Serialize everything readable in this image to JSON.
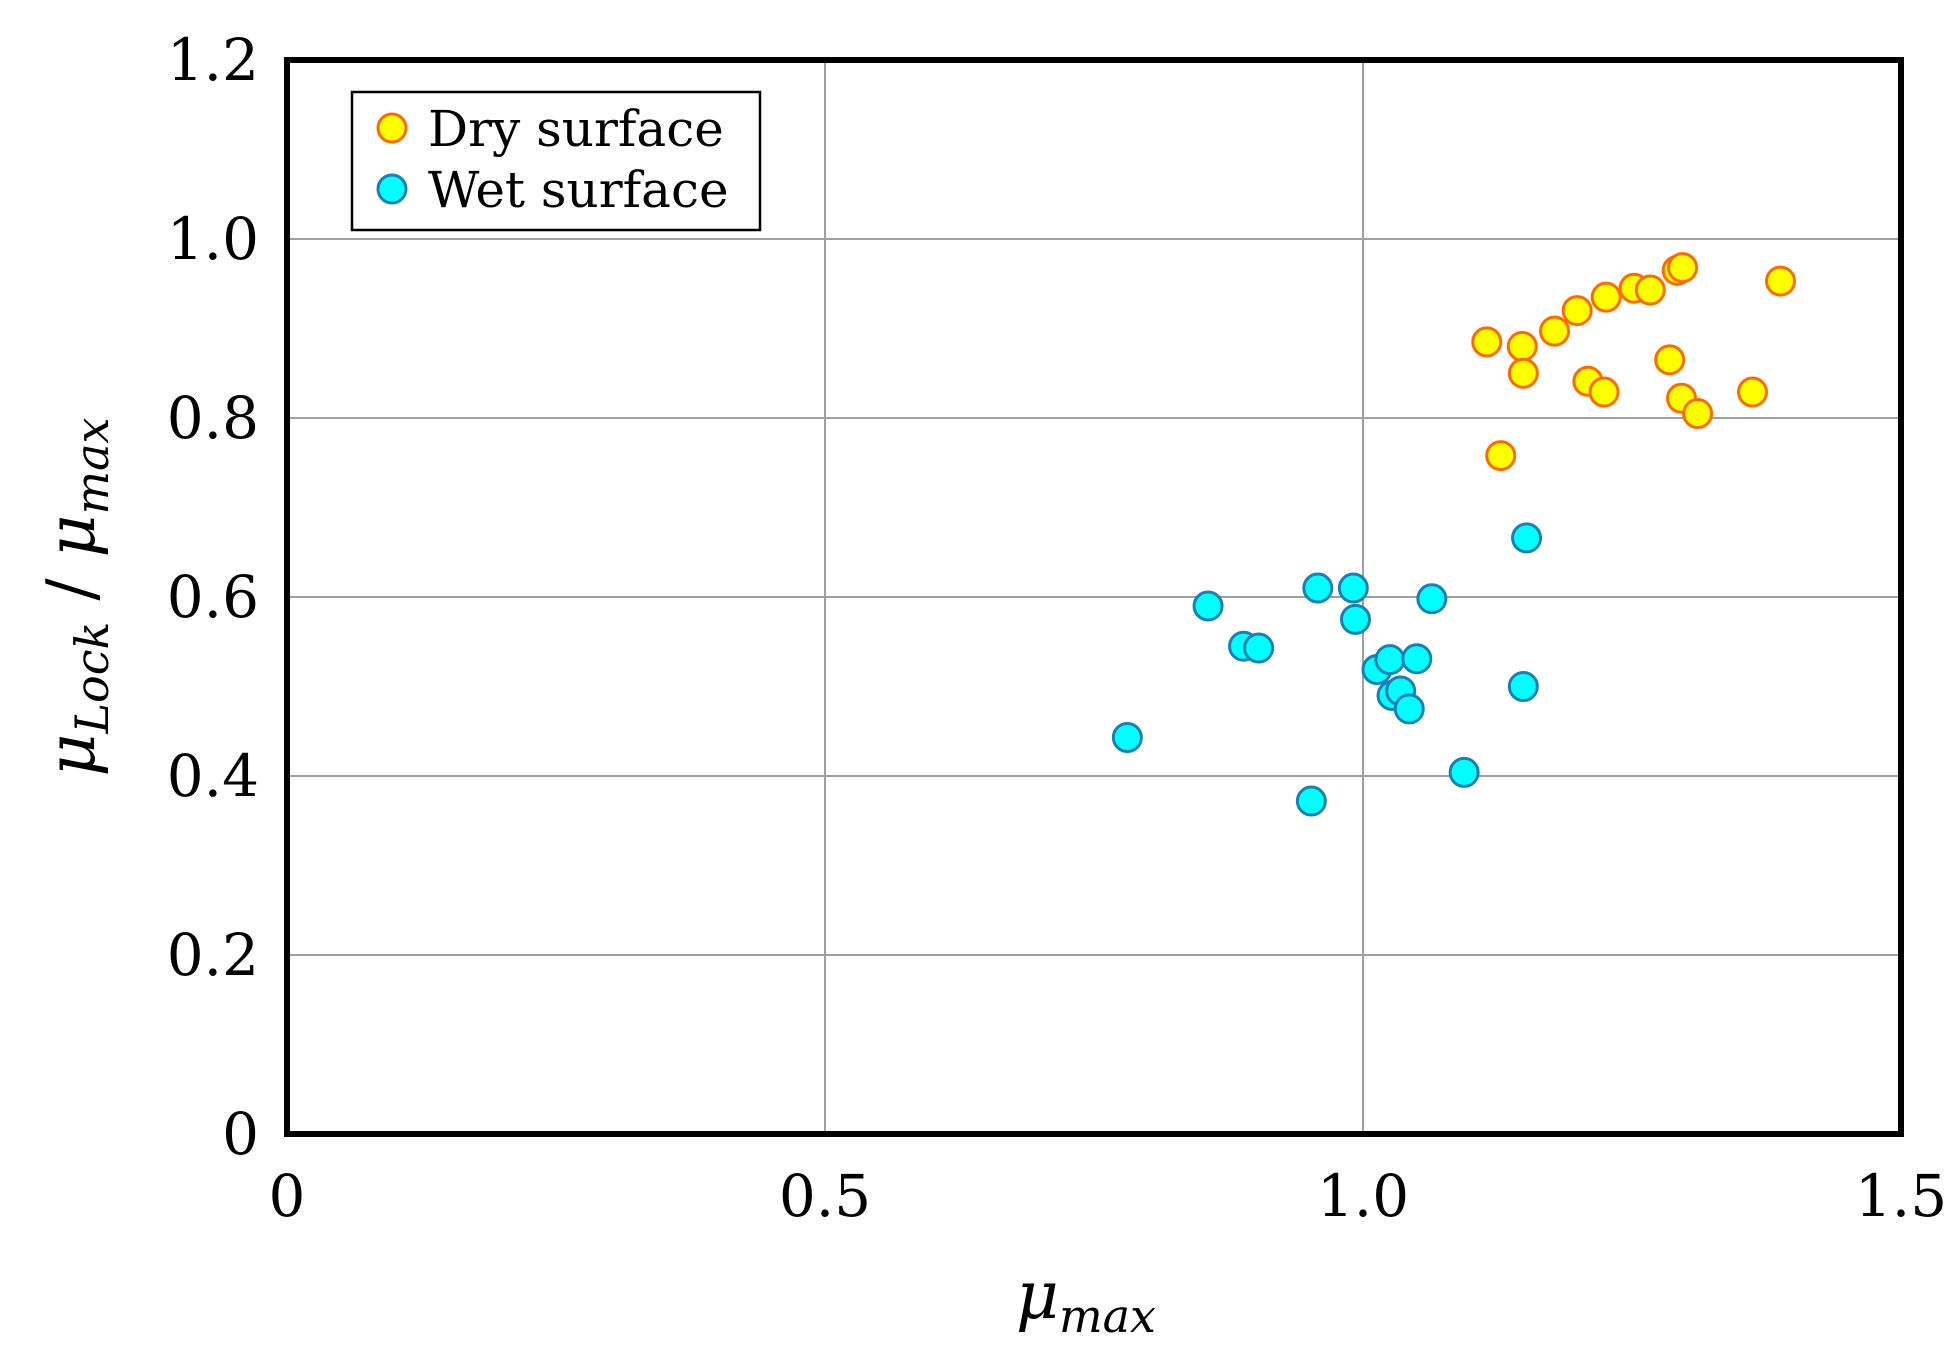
{
  "chart_data": {
    "type": "scatter",
    "title": "",
    "xlabel": {
      "symbol": "μ",
      "subscript": "max"
    },
    "ylabel": {
      "parts": [
        {
          "symbol": "μ",
          "subscript": "Lock"
        },
        {
          "text": " / "
        },
        {
          "symbol": "μ",
          "subscript": "max"
        }
      ]
    },
    "xlim": [
      0,
      1.5
    ],
    "ylim": [
      0,
      1.2
    ],
    "x_ticks": [
      0,
      0.5,
      1.0,
      1.5
    ],
    "x_tick_labels": [
      "0",
      "0.5",
      "1.0",
      "1.5"
    ],
    "y_ticks": [
      0,
      0.2,
      0.4,
      0.6,
      0.8,
      1.0,
      1.2
    ],
    "y_tick_labels": [
      "0",
      "0.2",
      "0.4",
      "0.6",
      "0.8",
      "1.0",
      "1.2"
    ],
    "grid": true,
    "legend_position": "top-left",
    "series": [
      {
        "name": "Dry surface",
        "fill": "#FFFF00",
        "stroke": "#FF6A00",
        "points": [
          [
            1.115,
            0.885
          ],
          [
            1.148,
            0.88
          ],
          [
            1.149,
            0.85
          ],
          [
            1.128,
            0.758
          ],
          [
            1.178,
            0.897
          ],
          [
            1.199,
            0.92
          ],
          [
            1.209,
            0.841
          ],
          [
            1.224,
            0.829
          ],
          [
            1.226,
            0.935
          ],
          [
            1.252,
            0.945
          ],
          [
            1.267,
            0.943
          ],
          [
            1.292,
            0.965
          ],
          [
            1.297,
            0.968
          ],
          [
            1.285,
            0.865
          ],
          [
            1.296,
            0.822
          ],
          [
            1.311,
            0.805
          ],
          [
            1.362,
            0.829
          ],
          [
            1.388,
            0.953
          ]
        ]
      },
      {
        "name": "Wet surface",
        "fill": "#00FFFF",
        "stroke": "#1A7FB5",
        "points": [
          [
            0.781,
            0.443
          ],
          [
            0.856,
            0.59
          ],
          [
            0.889,
            0.545
          ],
          [
            0.903,
            0.543
          ],
          [
            0.952,
            0.372
          ],
          [
            0.958,
            0.61
          ],
          [
            0.991,
            0.61
          ],
          [
            0.993,
            0.575
          ],
          [
            1.013,
            0.519
          ],
          [
            1.025,
            0.53
          ],
          [
            1.027,
            0.49
          ],
          [
            1.035,
            0.495
          ],
          [
            1.043,
            0.475
          ],
          [
            1.05,
            0.531
          ],
          [
            1.064,
            0.598
          ],
          [
            1.094,
            0.404
          ],
          [
            1.149,
            0.5
          ],
          [
            1.152,
            0.666
          ]
        ]
      }
    ]
  }
}
